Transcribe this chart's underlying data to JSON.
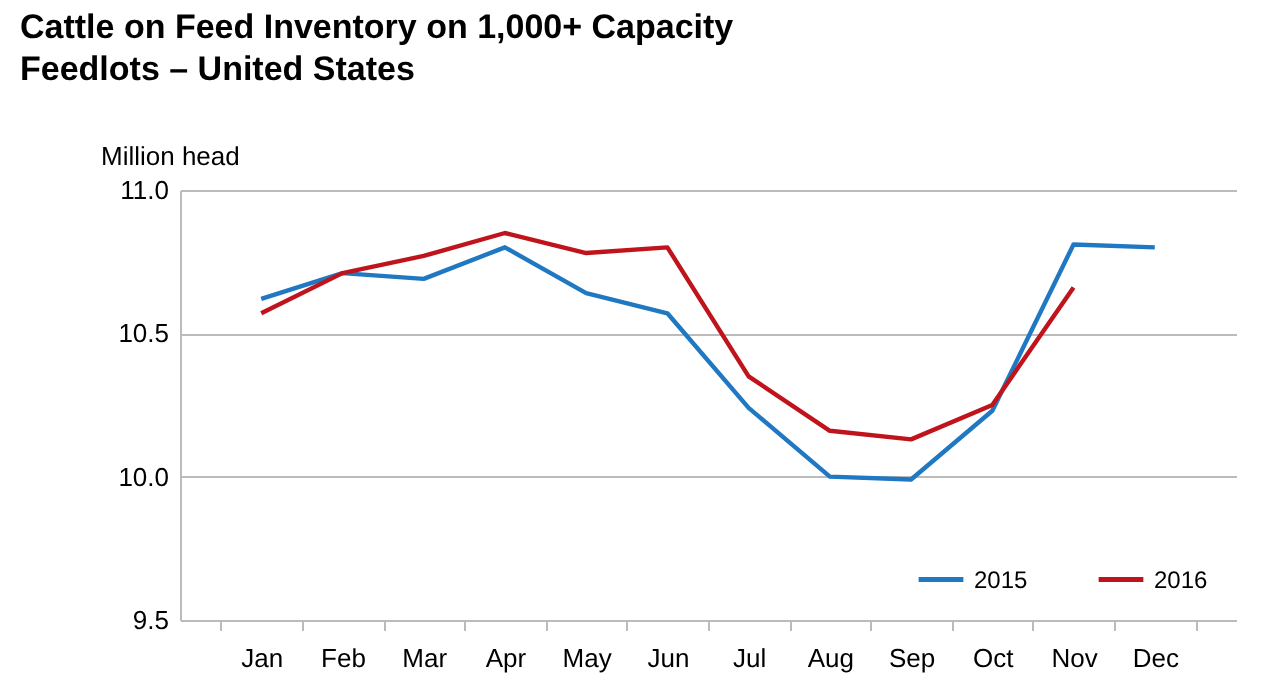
{
  "chart_data": {
    "type": "line",
    "title": "Cattle on Feed Inventory on 1,000+ Capacity Feedlots – United States",
    "ylabel": "Million head",
    "categories": [
      "Jan",
      "Feb",
      "Mar",
      "Apr",
      "May",
      "Jun",
      "Jul",
      "Aug",
      "Sep",
      "Oct",
      "Nov",
      "Dec"
    ],
    "series": [
      {
        "name": "2015",
        "color": "#1f78c1",
        "values": [
          10.62,
          10.71,
          10.69,
          10.8,
          10.64,
          10.57,
          10.24,
          10.0,
          9.99,
          10.23,
          10.81,
          10.8
        ]
      },
      {
        "name": "2016",
        "color": "#c0141c",
        "values": [
          10.57,
          10.71,
          10.77,
          10.85,
          10.78,
          10.8,
          10.35,
          10.16,
          10.13,
          10.25,
          10.66,
          null
        ]
      }
    ],
    "ylim": [
      9.5,
      11.0
    ],
    "yticks": [
      {
        "value": 9.5,
        "label": "9.5"
      },
      {
        "value": 10,
        "label": "10.0"
      },
      {
        "value": 10.5,
        "label": "10.5"
      },
      {
        "value": 11,
        "label": "11.0"
      }
    ],
    "grid": "y",
    "legend": "bottom right",
    "marker": "none",
    "line_style": "solid"
  }
}
